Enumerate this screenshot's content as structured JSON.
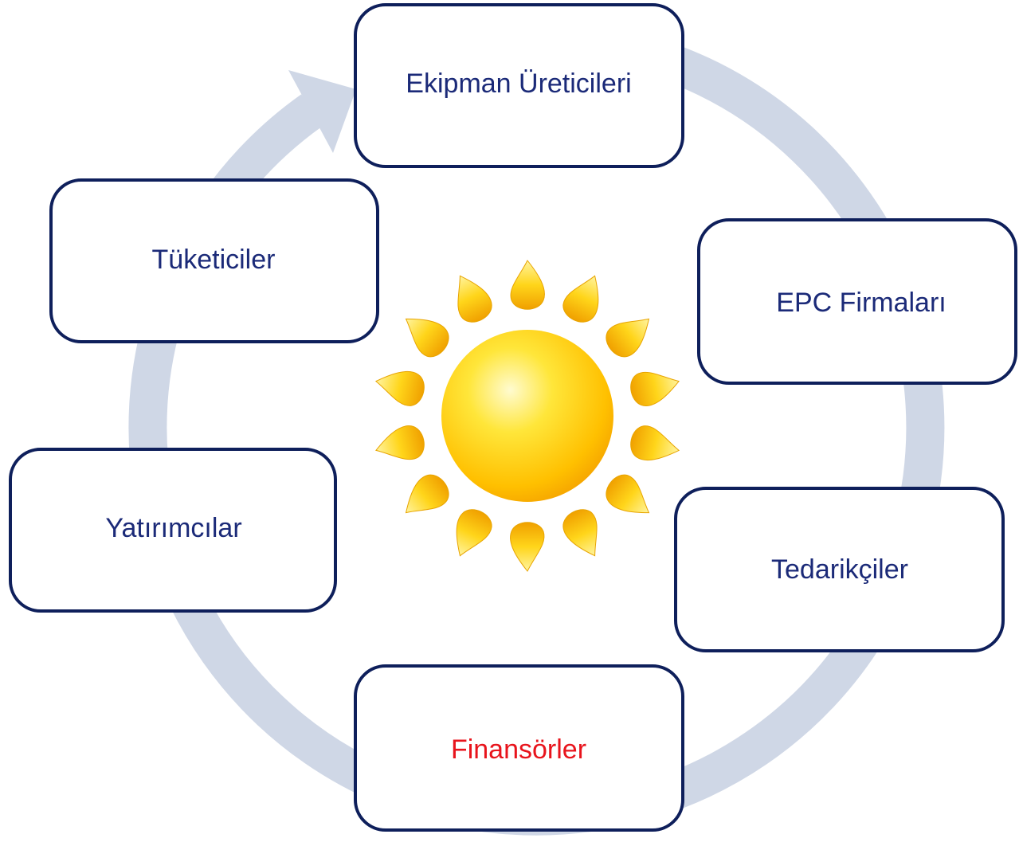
{
  "nodes": [
    {
      "label": "Ekipman Üreticileri"
    },
    {
      "label": "EPC Firmaları"
    },
    {
      "label": "Tedarikçiler"
    },
    {
      "label": "Finansörler"
    },
    {
      "label": "Yatırımcılar"
    },
    {
      "label": "Tüketiciler"
    }
  ]
}
